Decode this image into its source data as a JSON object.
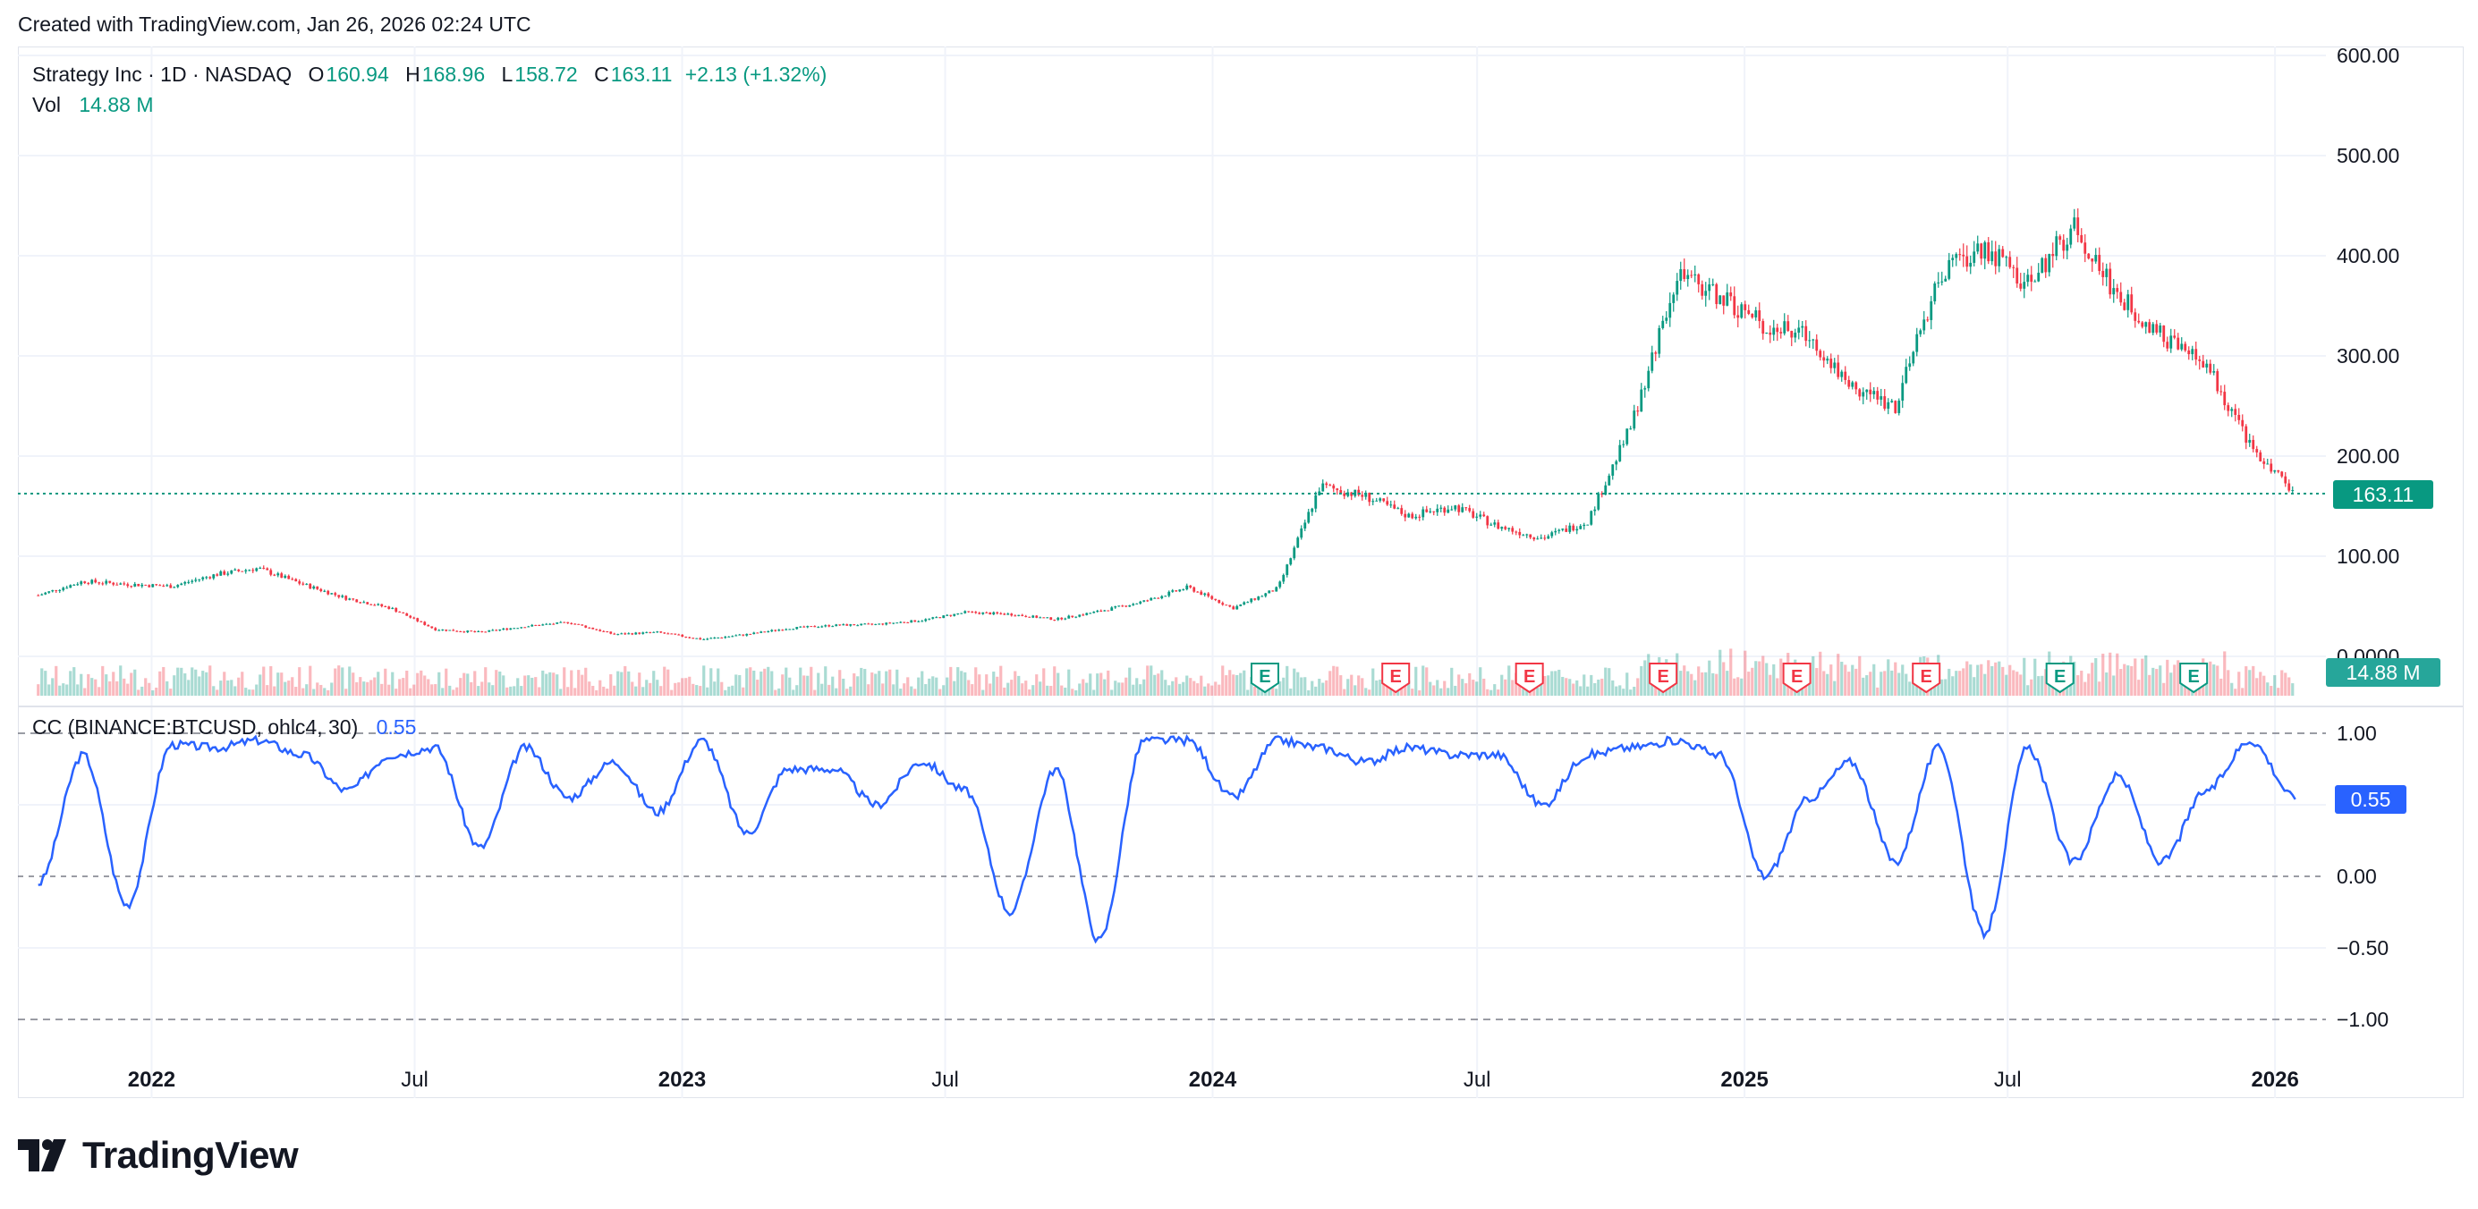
{
  "header": {
    "created_text": "Created with TradingView.com, Jan 26, 2026 02:24 UTC"
  },
  "legend": {
    "symbol": "Strategy Inc · 1D · NASDAQ",
    "o_label": "O",
    "o_value": "160.94",
    "h_label": "H",
    "h_value": "168.96",
    "l_label": "L",
    "l_value": "158.72",
    "c_label": "C",
    "c_value": "163.11",
    "change": "+2.13 (+1.32%)",
    "vol_label": "Vol",
    "vol_value": "14.88 M"
  },
  "cc_legend": {
    "label": "CC (BINANCE:BTCUSD, ohlc4, 30)",
    "value": "0.55"
  },
  "badges": {
    "last_price": "163.11",
    "last_volume": "14.88 M",
    "cc_value": "0.55"
  },
  "earnings_marker_letter": "E",
  "footer": {
    "brand": "TradingView"
  },
  "colors": {
    "up": "#089981",
    "down": "#f23645",
    "line": "#2962ff",
    "grid": "#f0f3fa",
    "earnings_up": "#089981",
    "earnings_down": "#f23645"
  },
  "chart_data": [
    {
      "type": "candlestick",
      "title": "Strategy Inc · 1D · NASDAQ",
      "x_tick_labels": [
        "2022",
        "Jul",
        "2023",
        "Jul",
        "2024",
        "Jul",
        "2025",
        "Jul",
        "2026"
      ],
      "y_tick_labels": [
        "0.0000",
        "100.00",
        "200.00",
        "300.00",
        "400.00",
        "500.00",
        "600.00"
      ],
      "ylim": [
        0,
        600
      ],
      "grid": true,
      "last_price": 163.11,
      "x": [
        "2021-10",
        "2021-11",
        "2021-12",
        "2022-01",
        "2022-02",
        "2022-03",
        "2022-04",
        "2022-05",
        "2022-06",
        "2022-07",
        "2022-08",
        "2022-09",
        "2022-10",
        "2022-11",
        "2022-12",
        "2023-01",
        "2023-02",
        "2023-03",
        "2023-04",
        "2023-05",
        "2023-06",
        "2023-07",
        "2023-08",
        "2023-09",
        "2023-10",
        "2023-11",
        "2023-12",
        "2024-01",
        "2024-02",
        "2024-03",
        "2024-04",
        "2024-05",
        "2024-06",
        "2024-07",
        "2024-08",
        "2024-09",
        "2024-10",
        "2024-11",
        "2024-12",
        "2025-01",
        "2025-02",
        "2025-03",
        "2025-04",
        "2025-05",
        "2025-06",
        "2025-07",
        "2025-08",
        "2025-09",
        "2025-10",
        "2025-11",
        "2025-12",
        "2026-01"
      ],
      "close": [
        61,
        75,
        72,
        70,
        82,
        88,
        72,
        58,
        48,
        27,
        24,
        30,
        34,
        22,
        24,
        17,
        22,
        28,
        31,
        32,
        36,
        44,
        42,
        37,
        45,
        55,
        69,
        48,
        68,
        170,
        160,
        140,
        150,
        130,
        118,
        135,
        230,
        380,
        360,
        330,
        320,
        270,
        250,
        380,
        410,
        370,
        430,
        360,
        320,
        290,
        210,
        163.11
      ],
      "annotations": [
        "Earnings markers (E) below price bars"
      ]
    },
    {
      "type": "bar",
      "title": "Vol",
      "last_value": "14.88 M"
    },
    {
      "type": "line",
      "title": "CC (BINANCE:BTCUSD, ohlc4, 30)",
      "y_tick_labels": [
        "1.00",
        "0.50",
        "0.00",
        "−0.50",
        "−1.00"
      ],
      "ylim": [
        -1,
        1
      ],
      "last_value": 0.55,
      "x": [
        "2021-10",
        "2021-11",
        "2021-12",
        "2022-01",
        "2022-02",
        "2022-03",
        "2022-04",
        "2022-05",
        "2022-06",
        "2022-07",
        "2022-08",
        "2022-09",
        "2022-10",
        "2022-11",
        "2022-12",
        "2023-01",
        "2023-02",
        "2023-03",
        "2023-04",
        "2023-05",
        "2023-06",
        "2023-07",
        "2023-08",
        "2023-09",
        "2023-10",
        "2023-11",
        "2023-12",
        "2024-01",
        "2024-02",
        "2024-03",
        "2024-04",
        "2024-05",
        "2024-06",
        "2024-07",
        "2024-08",
        "2024-09",
        "2024-10",
        "2024-11",
        "2024-12",
        "2025-01",
        "2025-02",
        "2025-03",
        "2025-04",
        "2025-05",
        "2025-06",
        "2025-07",
        "2025-08",
        "2025-09",
        "2025-10",
        "2025-11",
        "2025-12",
        "2026-01"
      ],
      "values": [
        -0.05,
        0.85,
        -0.2,
        0.92,
        0.9,
        0.95,
        0.85,
        0.6,
        0.85,
        0.9,
        0.2,
        0.9,
        0.55,
        0.8,
        0.45,
        0.95,
        0.3,
        0.75,
        0.75,
        0.5,
        0.8,
        0.6,
        -0.25,
        0.75,
        -0.45,
        0.95,
        0.95,
        0.55,
        0.95,
        0.9,
        0.8,
        0.9,
        0.85,
        0.85,
        0.5,
        0.85,
        0.9,
        0.95,
        0.85,
        0.0,
        0.55,
        0.8,
        0.1,
        0.9,
        -0.4,
        0.9,
        0.1,
        0.7,
        0.1,
        0.6,
        0.95,
        0.55
      ]
    }
  ]
}
